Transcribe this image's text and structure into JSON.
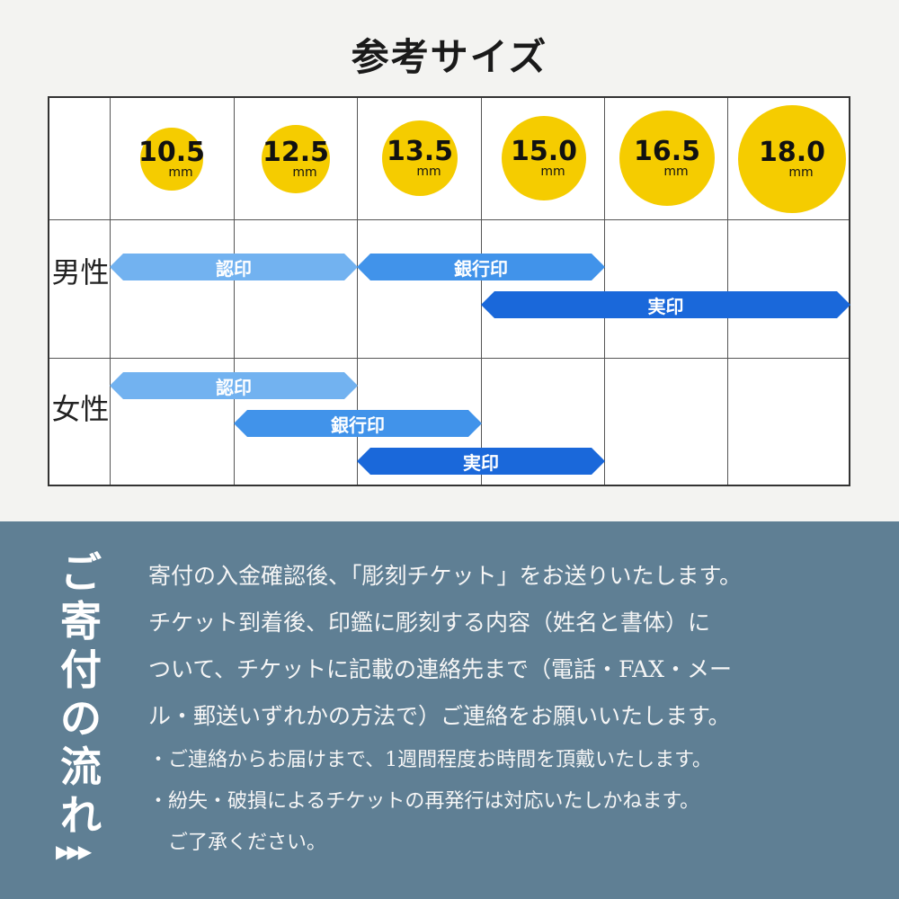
{
  "title": "参考サイズ",
  "sizes": [
    {
      "value": "10.5",
      "unit": "mm"
    },
    {
      "value": "12.5",
      "unit": "mm"
    },
    {
      "value": "13.5",
      "unit": "mm"
    },
    {
      "value": "15.0",
      "unit": "mm"
    },
    {
      "value": "16.5",
      "unit": "mm"
    },
    {
      "value": "18.0",
      "unit": "mm"
    }
  ],
  "rows": [
    {
      "label": "男性",
      "bars": [
        {
          "label": "認印",
          "from": "10.5",
          "to": "13.5"
        },
        {
          "label": "銀行印",
          "from": "13.5",
          "to": "16.5"
        },
        {
          "label": "実印",
          "from": "15.0",
          "to": "18.0"
        }
      ]
    },
    {
      "label": "女性",
      "bars": [
        {
          "label": "認印",
          "from": "10.5",
          "to": "13.5"
        },
        {
          "label": "銀行印",
          "from": "12.5",
          "to": "15.0"
        },
        {
          "label": "実印",
          "from": "13.5",
          "to": "16.5"
        }
      ]
    }
  ],
  "colors": {
    "circle": "#f5cc00",
    "mitomein": "#72b2f0",
    "ginkoin": "#4193ea",
    "jitsuin": "#1a68da",
    "panel": "#5f7f94"
  },
  "flow": {
    "title": "ご寄付の流れ",
    "arrow": "▶▶▶",
    "lines": [
      "寄付の入金確認後、「彫刻チケット」をお送りいたします。",
      "チケット到着後、印鑑に彫刻する内容（姓名と書体）に",
      "ついて、チケットに記載の連絡先まで（電話・FAX・メー",
      "ル・郵送いずれかの方法で）ご連絡をお願いいたします。"
    ],
    "notes": [
      "・ご連絡からお届けまで、1週間程度お時間を頂戴いたします。",
      "・紛失・破損によるチケットの再発行は対応いたしかねます。",
      "　ご了承ください。"
    ]
  }
}
